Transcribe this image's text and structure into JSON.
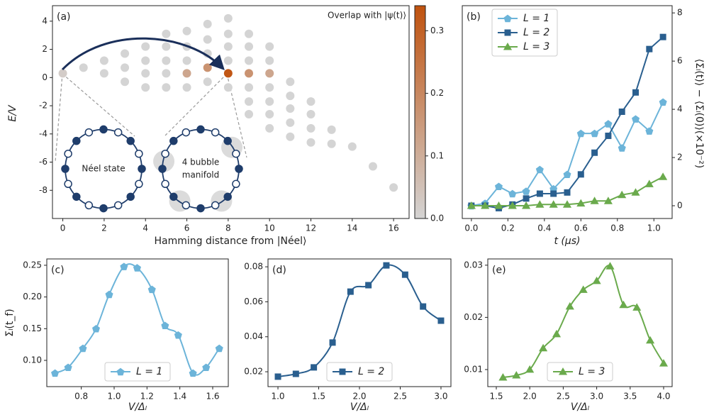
{
  "chart_data": [
    {
      "type": "scatter",
      "panel_label": "(a)",
      "annotation": "Overlap with |ψ(t)⟩",
      "inset_labels": [
        "Néel state",
        "4 bubble",
        "manifold"
      ],
      "x_label": "Hamming distance from |Néel⟩",
      "y_label": "E/V",
      "x": [
        0,
        1,
        2,
        2,
        3,
        3,
        3,
        4,
        4,
        4,
        4,
        5,
        5,
        5,
        5,
        5,
        6,
        6,
        6,
        6,
        6,
        7,
        7,
        7,
        7,
        7,
        8,
        8,
        8,
        8,
        8,
        8,
        9,
        9,
        9,
        9,
        9,
        9,
        9,
        10,
        10,
        10,
        10,
        10,
        10,
        10,
        11,
        11,
        11,
        11,
        11,
        12,
        12,
        12,
        12,
        13,
        13,
        14,
        15,
        16
      ],
      "values": [
        0.3,
        0.7,
        1.2,
        0.3,
        1.7,
        0.7,
        -0.3,
        2.2,
        1.2,
        0.3,
        -0.7,
        3.1,
        2.2,
        1.2,
        0.3,
        -0.7,
        3.3,
        2.2,
        1.2,
        0.3,
        -0.7,
        3.8,
        2.7,
        1.7,
        0.7,
        -0.3,
        4.2,
        3.1,
        2.2,
        1.2,
        0.3,
        -0.7,
        3.1,
        2.2,
        1.2,
        0.3,
        -0.7,
        -1.7,
        -2.6,
        2.2,
        1.2,
        0.3,
        -0.7,
        -1.7,
        -2.6,
        -3.6,
        -0.3,
        -1.3,
        -2.2,
        -3.2,
        -4.2,
        -1.7,
        -2.6,
        -3.6,
        -4.6,
        -3.7,
        -4.7,
        -4.9,
        -6.3,
        -7.8
      ],
      "color_values": [
        0.02,
        0,
        0,
        0,
        0,
        0,
        0,
        0,
        0,
        0,
        0,
        0,
        0,
        0,
        0,
        0,
        0,
        0,
        0,
        0.12,
        0,
        0,
        0,
        0,
        0.17,
        0,
        0,
        0,
        0,
        0,
        0.33,
        0,
        0,
        0,
        0,
        0.17,
        0,
        0,
        0,
        0,
        0,
        0.12,
        0,
        0,
        0,
        0,
        0,
        0,
        0,
        0,
        0,
        0,
        0,
        0,
        0,
        0,
        0,
        0,
        0,
        0
      ],
      "xlim": [
        -0.5,
        16.75
      ],
      "ylim": [
        -10,
        5.1
      ],
      "xticks": [
        0,
        2,
        4,
        6,
        8,
        10,
        12,
        14,
        16
      ],
      "yticks": [
        -8,
        -6,
        -4,
        -2,
        0,
        2,
        4
      ],
      "colorbar": {
        "lim": [
          0,
          0.34
        ],
        "ticks": [
          {
            "value": 0,
            "label": "0.0"
          },
          0.1,
          0.2,
          0.3
        ],
        "colors": [
          "#d4d4d4",
          "#c0520e"
        ]
      }
    },
    {
      "type": "line",
      "panel_label": "(b)",
      "x_label": "t (μs)",
      "y_label": "⟨Σₗ(t)⟩ − ⟨Σₗ(0)⟩(×10⁻²)",
      "yaxis_position": "right",
      "legend": "upper left",
      "x": [
        0,
        0.075,
        0.15,
        0.225,
        0.3,
        0.375,
        0.45,
        0.525,
        0.6,
        0.675,
        0.75,
        0.825,
        0.9,
        0.975,
        1.05
      ],
      "series": [
        {
          "name": "L = 1",
          "color": "#6cb4d9",
          "marker": "pentagon",
          "values": [
            0,
            0.1,
            0.8,
            0.5,
            0.6,
            1.5,
            0.7,
            1.3,
            3.0,
            3.0,
            3.4,
            2.4,
            3.6,
            3.1,
            4.3
          ]
        },
        {
          "name": "L = 2",
          "color": "#2a5f8f",
          "marker": "square",
          "values": [
            0,
            0,
            -0.1,
            0.05,
            0.3,
            0.5,
            0.5,
            0.55,
            1.3,
            2.2,
            2.9,
            3.9,
            4.7,
            6.5,
            7.0
          ]
        },
        {
          "name": "L = 3",
          "color": "#6aaa4c",
          "marker": "triangle",
          "values": [
            0,
            0,
            0,
            0,
            0,
            0.05,
            0.05,
            0.05,
            0.1,
            0.2,
            0.2,
            0.45,
            0.55,
            0.9,
            1.2
          ]
        }
      ],
      "xlim": [
        -0.05,
        1.1
      ],
      "ylim": [
        -0.53,
        8.3
      ],
      "xticks": [
        {
          "value": 0,
          "label": "0.0"
        },
        0.2,
        0.4,
        0.6,
        0.8,
        {
          "value": 1,
          "label": "1.0"
        }
      ],
      "yticks": [
        0,
        2,
        4,
        6,
        8
      ]
    },
    {
      "type": "line",
      "panel_label": "(c)",
      "x_label": "V/Δₗ",
      "y_label": "Σₗ(t_f)",
      "legend": "lower center",
      "smooth": true,
      "x": [
        0.64,
        0.72,
        0.81,
        0.89,
        0.97,
        1.06,
        1.14,
        1.23,
        1.31,
        1.39,
        1.48,
        1.56,
        1.64
      ],
      "series": [
        {
          "name": "L = 1",
          "color": "#6cb4d9",
          "marker": "pentagon",
          "values": [
            0.08,
            0.089,
            0.119,
            0.15,
            0.204,
            0.248,
            0.246,
            0.212,
            0.155,
            0.14,
            0.08,
            0.089,
            0.119
          ]
        }
      ],
      "xlim": [
        0.59,
        1.695
      ],
      "ylim": [
        0.0586,
        0.26
      ],
      "xticks": [
        0.8,
        {
          "value": 1,
          "label": "1.0"
        },
        1.2,
        1.4,
        1.6
      ],
      "yticks": [
        {
          "value": 0.1,
          "label": "0.10"
        },
        0.15,
        {
          "value": 0.2,
          "label": "0.20"
        },
        0.25
      ]
    },
    {
      "type": "line",
      "panel_label": "(d)",
      "x_label": "V/Δₗ",
      "legend": "lower center",
      "smooth": true,
      "x": [
        1.0,
        1.22,
        1.44,
        1.67,
        1.89,
        2.11,
        2.33,
        2.56,
        2.78,
        3.0
      ],
      "series": [
        {
          "name": "L = 2",
          "color": "#2a5f8f",
          "marker": "square",
          "values": [
            0.0172,
            0.0188,
            0.0225,
            0.0367,
            0.0658,
            0.0695,
            0.0808,
            0.0755,
            0.0573,
            0.0492
          ]
        }
      ],
      "xlim": [
        0.878,
        3.122
      ],
      "ylim": [
        0.0115,
        0.0845
      ],
      "xticks": [
        {
          "value": 1,
          "label": "1.0"
        },
        1.5,
        {
          "value": 2,
          "label": "2.0"
        },
        2.5,
        {
          "value": 3,
          "label": "3.0"
        }
      ],
      "yticks": [
        0.02,
        0.04,
        0.06,
        0.08
      ]
    },
    {
      "type": "line",
      "panel_label": "(e)",
      "x_label": "V/Δₗ",
      "legend": "lower center",
      "smooth": true,
      "x": [
        1.6,
        1.8,
        2.0,
        2.2,
        2.4,
        2.6,
        2.8,
        3.0,
        3.2,
        3.4,
        3.6,
        3.8,
        4.0
      ],
      "series": [
        {
          "name": "L = 3",
          "color": "#6aaa4c",
          "marker": "triangle",
          "values": [
            0.0085,
            0.0089,
            0.01,
            0.0141,
            0.0168,
            0.0221,
            0.0253,
            0.027,
            0.0298,
            0.0224,
            0.0219,
            0.0156,
            0.0112
          ]
        }
      ],
      "xlim": [
        1.373,
        4.127
      ],
      "ylim": [
        0.00673,
        0.0312
      ],
      "xticks": [
        1.5,
        {
          "value": 2,
          "label": "2.0"
        },
        2.5,
        {
          "value": 3,
          "label": "3.0"
        },
        3.5,
        {
          "value": 4,
          "label": "4.0"
        }
      ],
      "yticks": [
        0.01,
        0.02,
        0.03
      ]
    }
  ]
}
